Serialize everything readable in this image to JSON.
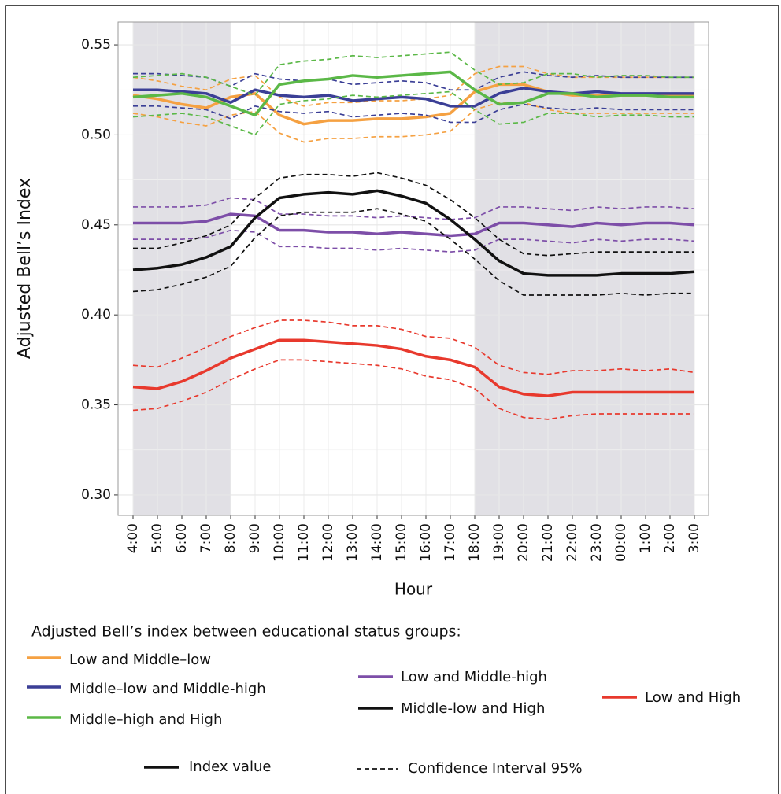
{
  "chart_data": {
    "type": "line",
    "y_label": "Adjusted Bell’s Index",
    "x_label": "Hour",
    "legend_title": "Adjusted Bell’s index between educational status groups:",
    "line_styles": {
      "index": "Index value",
      "ci": "Confidence Interval 95%"
    },
    "categories": [
      "4:00",
      "5:00",
      "6:00",
      "7:00",
      "8:00",
      "9:00",
      "10:00",
      "11:00",
      "12:00",
      "13:00",
      "14:00",
      "15:00",
      "16:00",
      "17:00",
      "18:00",
      "19:00",
      "20:00",
      "21:00",
      "22:00",
      "23:00",
      "00:00",
      "1:00",
      "2:00",
      "3:00"
    ],
    "shaded_spans": [
      [
        0,
        4
      ],
      [
        14,
        23
      ]
    ],
    "ylim": [
      0.2886,
      0.5627
    ],
    "yticks": [
      {
        "value": 0.3,
        "label": "0.30"
      },
      0.35,
      {
        "value": 0.4,
        "label": "0.40"
      },
      0.45,
      {
        "value": 0.5,
        "label": "0.50"
      },
      0.55
    ],
    "grid": true,
    "series": [
      {
        "name": "Low and Middle–low",
        "color": "#f5a142",
        "values": [
          0.522,
          0.52,
          0.517,
          0.515,
          0.521,
          0.523,
          0.511,
          0.506,
          0.508,
          0.508,
          0.509,
          0.509,
          0.51,
          0.512,
          0.524,
          0.528,
          0.528,
          0.524,
          0.522,
          0.522,
          0.522,
          0.522,
          0.522,
          0.522
        ],
        "upper": [
          0.532,
          0.53,
          0.527,
          0.525,
          0.531,
          0.533,
          0.521,
          0.516,
          0.518,
          0.518,
          0.519,
          0.519,
          0.52,
          0.522,
          0.534,
          0.538,
          0.538,
          0.534,
          0.532,
          0.532,
          0.532,
          0.532,
          0.532,
          0.532
        ],
        "lower": [
          0.512,
          0.51,
          0.507,
          0.505,
          0.511,
          0.513,
          0.501,
          0.496,
          0.498,
          0.498,
          0.499,
          0.499,
          0.5,
          0.502,
          0.514,
          0.518,
          0.518,
          0.514,
          0.512,
          0.512,
          0.512,
          0.512,
          0.512,
          0.512
        ]
      },
      {
        "name": "Middle–low and Middle-high",
        "color": "#3b3f96",
        "values": [
          0.525,
          0.525,
          0.524,
          0.523,
          0.518,
          0.525,
          0.522,
          0.521,
          0.522,
          0.519,
          0.52,
          0.521,
          0.52,
          0.516,
          0.516,
          0.523,
          0.526,
          0.524,
          0.523,
          0.524,
          0.523,
          0.523,
          0.523,
          0.523
        ],
        "upper": [
          0.534,
          0.534,
          0.533,
          0.532,
          0.527,
          0.534,
          0.531,
          0.53,
          0.531,
          0.528,
          0.529,
          0.53,
          0.529,
          0.525,
          0.525,
          0.532,
          0.535,
          0.533,
          0.532,
          0.533,
          0.532,
          0.532,
          0.532,
          0.532
        ],
        "lower": [
          0.516,
          0.516,
          0.515,
          0.514,
          0.509,
          0.516,
          0.513,
          0.512,
          0.513,
          0.51,
          0.511,
          0.512,
          0.511,
          0.507,
          0.507,
          0.514,
          0.517,
          0.515,
          0.514,
          0.515,
          0.514,
          0.514,
          0.514,
          0.514
        ]
      },
      {
        "name": "Middle–high and High",
        "color": "#5bb847",
        "values": [
          0.521,
          0.522,
          0.523,
          0.521,
          0.516,
          0.511,
          0.528,
          0.53,
          0.531,
          0.533,
          0.532,
          0.533,
          0.534,
          0.535,
          0.525,
          0.517,
          0.518,
          0.523,
          0.523,
          0.521,
          0.522,
          0.522,
          0.521,
          0.521
        ],
        "upper": [
          0.532,
          0.533,
          0.534,
          0.532,
          0.527,
          0.522,
          0.539,
          0.541,
          0.542,
          0.544,
          0.543,
          0.544,
          0.545,
          0.546,
          0.536,
          0.528,
          0.529,
          0.534,
          0.534,
          0.532,
          0.533,
          0.533,
          0.532,
          0.532
        ],
        "lower": [
          0.51,
          0.511,
          0.512,
          0.51,
          0.505,
          0.5,
          0.517,
          0.519,
          0.52,
          0.522,
          0.521,
          0.522,
          0.523,
          0.524,
          0.514,
          0.506,
          0.507,
          0.512,
          0.512,
          0.51,
          0.511,
          0.511,
          0.51,
          0.51
        ]
      },
      {
        "name": "Low and Middle-high",
        "color": "#7d4ea8",
        "values": [
          0.451,
          0.451,
          0.451,
          0.452,
          0.456,
          0.455,
          0.447,
          0.447,
          0.446,
          0.446,
          0.445,
          0.446,
          0.445,
          0.444,
          0.445,
          0.451,
          0.451,
          0.45,
          0.449,
          0.451,
          0.45,
          0.451,
          0.451,
          0.45
        ],
        "upper": [
          0.46,
          0.46,
          0.46,
          0.461,
          0.465,
          0.464,
          0.456,
          0.456,
          0.455,
          0.455,
          0.454,
          0.455,
          0.454,
          0.453,
          0.454,
          0.46,
          0.46,
          0.459,
          0.458,
          0.46,
          0.459,
          0.46,
          0.46,
          0.459
        ],
        "lower": [
          0.442,
          0.442,
          0.442,
          0.443,
          0.447,
          0.446,
          0.438,
          0.438,
          0.437,
          0.437,
          0.436,
          0.437,
          0.436,
          0.435,
          0.436,
          0.442,
          0.442,
          0.441,
          0.44,
          0.442,
          0.441,
          0.442,
          0.442,
          0.441
        ]
      },
      {
        "name": "Middle-low and High",
        "color": "#111111",
        "values": [
          0.425,
          0.426,
          0.428,
          0.432,
          0.438,
          0.454,
          0.465,
          0.467,
          0.468,
          0.467,
          0.469,
          0.466,
          0.462,
          0.453,
          0.442,
          0.43,
          0.423,
          0.422,
          0.422,
          0.422,
          0.423,
          0.423,
          0.423,
          0.424
        ],
        "upper": [
          0.437,
          0.437,
          0.44,
          0.444,
          0.45,
          0.465,
          0.476,
          0.478,
          0.478,
          0.477,
          0.479,
          0.476,
          0.472,
          0.464,
          0.454,
          0.442,
          0.434,
          0.433,
          0.434,
          0.435,
          0.435,
          0.435,
          0.435,
          0.435
        ],
        "lower": [
          0.413,
          0.414,
          0.417,
          0.421,
          0.427,
          0.443,
          0.455,
          0.457,
          0.457,
          0.457,
          0.459,
          0.456,
          0.452,
          0.442,
          0.431,
          0.419,
          0.411,
          0.411,
          0.411,
          0.411,
          0.412,
          0.411,
          0.412,
          0.412
        ]
      },
      {
        "name": "Low and High",
        "color": "#e8392d",
        "values": [
          0.36,
          0.359,
          0.363,
          0.369,
          0.376,
          0.381,
          0.386,
          0.386,
          0.385,
          0.384,
          0.383,
          0.381,
          0.377,
          0.375,
          0.371,
          0.36,
          0.356,
          0.355,
          0.357,
          0.357,
          0.357,
          0.357,
          0.357,
          0.357
        ],
        "upper": [
          0.372,
          0.371,
          0.376,
          0.382,
          0.388,
          0.393,
          0.397,
          0.397,
          0.396,
          0.394,
          0.394,
          0.392,
          0.388,
          0.387,
          0.382,
          0.372,
          0.368,
          0.367,
          0.369,
          0.369,
          0.37,
          0.369,
          0.37,
          0.368
        ],
        "lower": [
          0.347,
          0.348,
          0.352,
          0.357,
          0.364,
          0.37,
          0.375,
          0.375,
          0.374,
          0.373,
          0.372,
          0.37,
          0.366,
          0.364,
          0.359,
          0.348,
          0.343,
          0.342,
          0.344,
          0.345,
          0.345,
          0.345,
          0.345,
          0.345
        ]
      }
    ]
  }
}
